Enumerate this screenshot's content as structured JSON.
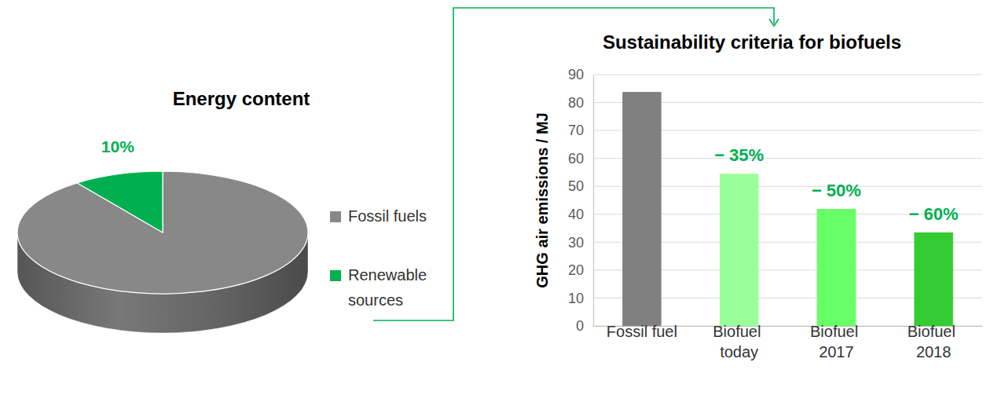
{
  "chart_data": [
    {
      "type": "pie",
      "title": "Energy content",
      "categories": [
        "Fossil fuels",
        "Renewable sources"
      ],
      "values": [
        90,
        10
      ],
      "value_labels": [
        null,
        "10%"
      ],
      "data_labels": true,
      "colors": [
        "#888888",
        "#00b050"
      ],
      "legend": "right"
    },
    {
      "type": "bar",
      "title": "Sustainability criteria for biofuels",
      "y_label": "GHG air emissions / MJ",
      "categories": [
        "Fossil fuel",
        "Biofuel\ntoday",
        "Biofuel\n2017",
        "Biofuel\n2018"
      ],
      "values": [
        83.8,
        54.5,
        41.9,
        33.5
      ],
      "annotations": [
        null,
        "− 35%",
        "− 50%",
        "− 60%"
      ],
      "colors": [
        "#808080",
        "#99ff99",
        "#66ff66",
        "#33cc33"
      ],
      "ylim": [
        0,
        90
      ],
      "yticks": [
        0,
        10,
        20,
        30,
        40,
        50,
        60,
        70,
        80,
        90
      ],
      "grid": true
    }
  ]
}
